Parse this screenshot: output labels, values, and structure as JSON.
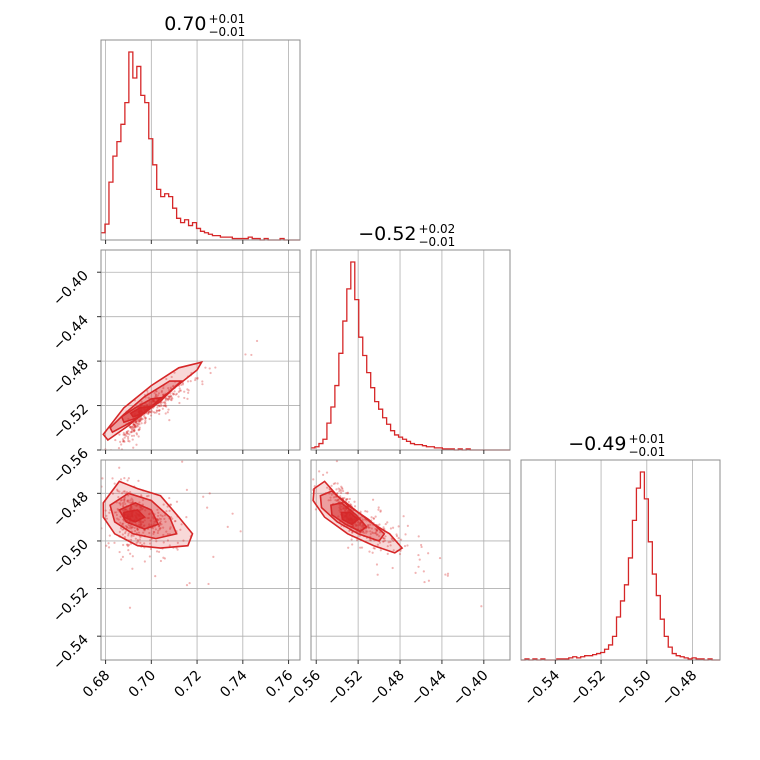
{
  "chart_data": {
    "type": "corner",
    "accent_color": "#d62728",
    "grid": true,
    "parameters": [
      {
        "title_value": "0.70",
        "title_upper": "+0.01",
        "title_lower": "−0.01",
        "range": [
          0.678,
          0.765
        ],
        "ticks": [
          0.68,
          0.7,
          0.72,
          0.74,
          0.76
        ],
        "tick_labels": [
          "0.68",
          "0.70",
          "0.72",
          "0.74",
          "0.76"
        ]
      },
      {
        "title_value": "−0.52",
        "title_upper": "+0.02",
        "title_lower": "−0.01",
        "range": [
          -0.565,
          -0.375
        ],
        "ticks": [
          -0.56,
          -0.52,
          -0.48,
          -0.44,
          -0.4
        ],
        "tick_labels": [
          "−0.56",
          "−0.52",
          "−0.48",
          "−0.44",
          "−0.40"
        ]
      },
      {
        "title_value": "−0.49",
        "title_upper": "+0.01",
        "title_lower": "−0.01",
        "range": [
          -0.555,
          -0.468
        ],
        "ticks": [
          -0.54,
          -0.52,
          -0.5,
          -0.48
        ],
        "tick_labels": [
          "−0.54",
          "−0.52",
          "−0.50",
          "−0.48"
        ]
      }
    ],
    "histograms": [
      {
        "param": 0,
        "bin_start": 0.678,
        "bin_width": 0.00174,
        "counts": [
          5,
          11,
          40,
          58,
          68,
          80,
          95,
          130,
          112,
          120,
          100,
          95,
          70,
          52,
          35,
          30,
          32,
          30,
          22,
          15,
          12,
          14,
          10,
          12,
          8,
          6,
          5,
          4,
          3,
          3,
          2,
          2,
          2,
          1,
          1,
          1,
          1,
          2,
          1,
          1,
          0,
          1,
          0,
          0,
          0,
          1,
          0,
          0,
          0,
          0
        ]
      },
      {
        "param": 1,
        "bin_start": -0.565,
        "bin_width": 0.0038,
        "counts": [
          2,
          3,
          6,
          10,
          25,
          40,
          60,
          90,
          120,
          150,
          175,
          140,
          105,
          88,
          72,
          58,
          45,
          38,
          30,
          24,
          18,
          14,
          12,
          10,
          8,
          6,
          5,
          5,
          4,
          3,
          3,
          2,
          2,
          1,
          1,
          1,
          0,
          1,
          0,
          1,
          0,
          0,
          0,
          0,
          0,
          0,
          0,
          0,
          0,
          0
        ]
      },
      {
        "param": 2,
        "bin_start": -0.555,
        "bin_width": 0.00174,
        "counts": [
          0,
          1,
          0,
          1,
          0,
          1,
          0,
          0,
          0,
          1,
          1,
          1,
          2,
          3,
          2,
          3,
          4,
          4,
          5,
          6,
          7,
          10,
          14,
          22,
          40,
          55,
          70,
          95,
          130,
          160,
          175,
          150,
          110,
          80,
          60,
          38,
          22,
          12,
          6,
          4,
          3,
          2,
          1,
          2,
          1,
          1,
          0,
          1,
          0,
          0
        ]
      }
    ],
    "pairs": [
      {
        "x_param": 0,
        "y_param": 1,
        "y_range": [
          -0.56,
          -0.38
        ],
        "y_ticks": [
          -0.56,
          -0.52,
          -0.48,
          -0.44,
          -0.4
        ],
        "y_tick_labels": [
          "−0.56",
          "−0.52",
          "−0.48",
          "−0.44",
          "−0.40"
        ],
        "density_center": [
          0.696,
          -0.526
        ],
        "correlation": "positive",
        "contour_levels": [
          [
            [
              0.681,
              -0.551
            ],
            [
              0.69,
              -0.538
            ],
            [
              0.704,
              -0.514
            ],
            [
              0.72,
              -0.488
            ],
            [
              0.722,
              -0.481
            ],
            [
              0.712,
              -0.486
            ],
            [
              0.7,
              -0.502
            ],
            [
              0.688,
              -0.522
            ],
            [
              0.679,
              -0.546
            ]
          ],
          [
            [
              0.683,
              -0.544
            ],
            [
              0.692,
              -0.534
            ],
            [
              0.704,
              -0.516
            ],
            [
              0.713,
              -0.498
            ],
            [
              0.708,
              -0.498
            ],
            [
              0.697,
              -0.512
            ],
            [
              0.688,
              -0.528
            ],
            [
              0.682,
              -0.54
            ]
          ],
          [
            [
              0.688,
              -0.535
            ],
            [
              0.694,
              -0.531
            ],
            [
              0.701,
              -0.52
            ],
            [
              0.704,
              -0.513
            ],
            [
              0.7,
              -0.514
            ],
            [
              0.693,
              -0.522
            ],
            [
              0.687,
              -0.53
            ]
          ],
          [
            [
              0.692,
              -0.53
            ],
            [
              0.697,
              -0.527
            ],
            [
              0.699,
              -0.521
            ],
            [
              0.695,
              -0.522
            ],
            [
              0.691,
              -0.527
            ]
          ]
        ]
      },
      {
        "x_param": 0,
        "y_param": 2,
        "y_range": [
          -0.55,
          -0.466
        ],
        "y_ticks": [
          -0.54,
          -0.52,
          -0.5,
          -0.48
        ],
        "y_tick_labels": [
          "−0.54",
          "−0.52",
          "−0.50",
          "−0.48"
        ],
        "density_center": [
          0.692,
          -0.491
        ],
        "correlation": "weak",
        "contour_levels": [
          [
            [
              0.679,
              -0.484
            ],
            [
              0.686,
              -0.475
            ],
            [
              0.694,
              -0.478
            ],
            [
              0.704,
              -0.481
            ],
            [
              0.712,
              -0.49
            ],
            [
              0.718,
              -0.497
            ],
            [
              0.716,
              -0.502
            ],
            [
              0.704,
              -0.503
            ],
            [
              0.694,
              -0.502
            ],
            [
              0.684,
              -0.497
            ],
            [
              0.679,
              -0.49
            ]
          ],
          [
            [
              0.682,
              -0.485
            ],
            [
              0.69,
              -0.48
            ],
            [
              0.7,
              -0.483
            ],
            [
              0.708,
              -0.49
            ],
            [
              0.711,
              -0.497
            ],
            [
              0.702,
              -0.499
            ],
            [
              0.692,
              -0.497
            ],
            [
              0.684,
              -0.492
            ]
          ],
          [
            [
              0.686,
              -0.487
            ],
            [
              0.693,
              -0.484
            ],
            [
              0.7,
              -0.487
            ],
            [
              0.703,
              -0.493
            ],
            [
              0.697,
              -0.495
            ],
            [
              0.689,
              -0.492
            ]
          ],
          [
            [
              0.688,
              -0.488
            ],
            [
              0.694,
              -0.487
            ],
            [
              0.697,
              -0.49
            ],
            [
              0.693,
              -0.492
            ],
            [
              0.688,
              -0.49
            ]
          ]
        ]
      },
      {
        "x_param": 1,
        "y_param": 2,
        "y_range": [
          -0.55,
          -0.466
        ],
        "y_ticks": [
          -0.54,
          -0.52,
          -0.5,
          -0.48
        ],
        "y_tick_labels": [
          "−0.54",
          "−0.52",
          "−0.50",
          "−0.48"
        ],
        "density_center": [
          -0.525,
          -0.491
        ],
        "correlation": "negative",
        "contour_levels": [
          [
            [
              -0.562,
              -0.478
            ],
            [
              -0.552,
              -0.475
            ],
            [
              -0.54,
              -0.481
            ],
            [
              -0.52,
              -0.488
            ],
            [
              -0.505,
              -0.493
            ],
            [
              -0.49,
              -0.497
            ],
            [
              -0.478,
              -0.503
            ],
            [
              -0.485,
              -0.505
            ],
            [
              -0.505,
              -0.502
            ],
            [
              -0.53,
              -0.497
            ],
            [
              -0.552,
              -0.49
            ],
            [
              -0.563,
              -0.483
            ]
          ],
          [
            [
              -0.556,
              -0.481
            ],
            [
              -0.545,
              -0.479
            ],
            [
              -0.53,
              -0.485
            ],
            [
              -0.51,
              -0.491
            ],
            [
              -0.495,
              -0.497
            ],
            [
              -0.5,
              -0.5
            ],
            [
              -0.52,
              -0.497
            ],
            [
              -0.54,
              -0.492
            ],
            [
              -0.555,
              -0.486
            ]
          ],
          [
            [
              -0.546,
              -0.485
            ],
            [
              -0.536,
              -0.484
            ],
            [
              -0.522,
              -0.489
            ],
            [
              -0.512,
              -0.494
            ],
            [
              -0.518,
              -0.496
            ],
            [
              -0.532,
              -0.493
            ],
            [
              -0.545,
              -0.489
            ]
          ],
          [
            [
              -0.536,
              -0.488
            ],
            [
              -0.528,
              -0.488
            ],
            [
              -0.52,
              -0.491
            ],
            [
              -0.526,
              -0.493
            ],
            [
              -0.535,
              -0.491
            ]
          ]
        ]
      }
    ]
  }
}
